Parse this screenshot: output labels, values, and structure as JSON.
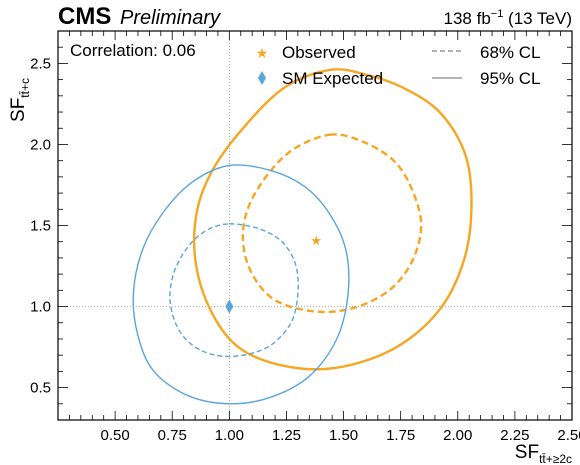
{
  "header": {
    "cms": "CMS",
    "preliminary": "Preliminary",
    "lumi_prefix": "138 fb",
    "lumi_exp": "−1",
    "lumi_suffix": " (13 TeV)"
  },
  "annotation": "Correlation: 0.06",
  "colors": {
    "observed": "#f5a623",
    "expected": "#5aa5dc",
    "frame": "#000000",
    "guide": "#808080"
  },
  "chart_data": {
    "type": "scatter",
    "xlabel": {
      "main": "SF",
      "sub": "tt̄+≥2c"
    },
    "ylabel": {
      "main": "SF",
      "sub": "tt̄+c"
    },
    "xlim": [
      0.25,
      2.5
    ],
    "ylim": [
      0.3,
      2.7
    ],
    "xticks": [
      0.5,
      0.75,
      1.0,
      1.25,
      1.5,
      1.75,
      2.0,
      2.25,
      2.5
    ],
    "xtick_labels": [
      "0.50",
      "0.75",
      "1.00",
      "1.25",
      "1.50",
      "1.75",
      "2.00",
      "2.25",
      "2.50"
    ],
    "yticks": [
      0.5,
      1.0,
      1.5,
      2.0,
      2.5
    ],
    "ytick_labels": [
      "0.5",
      "1.0",
      "1.5",
      "2.0",
      "2.5"
    ],
    "legend": {
      "placement": "top",
      "observed": "Observed",
      "expected": "SM Expected",
      "cl68": "68% CL",
      "cl95": "95% CL"
    },
    "observed_best_fit": {
      "x": 1.38,
      "y": 1.41
    },
    "expected_point": {
      "x": 1.0,
      "y": 1.0
    },
    "guide_lines": {
      "x": 1.0,
      "y": 1.0
    },
    "contours": [
      {
        "name": "observed-95",
        "cl": "95% CL",
        "series": "observed",
        "dashed": false,
        "points": [
          [
            1.44,
            2.46
          ],
          [
            1.6,
            2.43
          ],
          [
            1.76,
            2.35
          ],
          [
            1.92,
            2.2
          ],
          [
            2.03,
            1.95
          ],
          [
            2.06,
            1.65
          ],
          [
            2.03,
            1.3
          ],
          [
            1.92,
            0.98
          ],
          [
            1.72,
            0.74
          ],
          [
            1.46,
            0.62
          ],
          [
            1.22,
            0.64
          ],
          [
            1.03,
            0.76
          ],
          [
            0.91,
            1.0
          ],
          [
            0.85,
            1.3
          ],
          [
            0.86,
            1.6
          ],
          [
            0.93,
            1.85
          ],
          [
            1.06,
            2.1
          ],
          [
            1.24,
            2.35
          ]
        ]
      },
      {
        "name": "observed-68",
        "cl": "68% CL",
        "series": "observed",
        "dashed": true,
        "points": [
          [
            1.44,
            2.06
          ],
          [
            1.58,
            2.02
          ],
          [
            1.72,
            1.9
          ],
          [
            1.8,
            1.72
          ],
          [
            1.84,
            1.5
          ],
          [
            1.8,
            1.28
          ],
          [
            1.7,
            1.1
          ],
          [
            1.54,
            0.99
          ],
          [
            1.37,
            0.97
          ],
          [
            1.2,
            1.04
          ],
          [
            1.1,
            1.2
          ],
          [
            1.06,
            1.4
          ],
          [
            1.08,
            1.6
          ],
          [
            1.16,
            1.8
          ],
          [
            1.28,
            1.97
          ]
        ]
      },
      {
        "name": "expected-95",
        "cl": "95% CL",
        "series": "expected",
        "dashed": false,
        "points": [
          [
            1.0,
            1.87
          ],
          [
            1.18,
            1.84
          ],
          [
            1.33,
            1.74
          ],
          [
            1.44,
            1.57
          ],
          [
            1.51,
            1.35
          ],
          [
            1.52,
            1.08
          ],
          [
            1.47,
            0.8
          ],
          [
            1.35,
            0.57
          ],
          [
            1.18,
            0.44
          ],
          [
            1.0,
            0.4
          ],
          [
            0.82,
            0.45
          ],
          [
            0.67,
            0.6
          ],
          [
            0.6,
            0.82
          ],
          [
            0.58,
            1.08
          ],
          [
            0.62,
            1.35
          ],
          [
            0.71,
            1.58
          ],
          [
            0.84,
            1.77
          ]
        ]
      },
      {
        "name": "expected-68",
        "cl": "68% CL",
        "series": "expected",
        "dashed": true,
        "points": [
          [
            1.0,
            1.51
          ],
          [
            1.13,
            1.48
          ],
          [
            1.23,
            1.4
          ],
          [
            1.29,
            1.26
          ],
          [
            1.3,
            1.08
          ],
          [
            1.27,
            0.9
          ],
          [
            1.18,
            0.76
          ],
          [
            1.06,
            0.7
          ],
          [
            0.94,
            0.7
          ],
          [
            0.84,
            0.76
          ],
          [
            0.77,
            0.88
          ],
          [
            0.74,
            1.05
          ],
          [
            0.76,
            1.22
          ],
          [
            0.82,
            1.37
          ],
          [
            0.9,
            1.47
          ]
        ]
      }
    ]
  }
}
